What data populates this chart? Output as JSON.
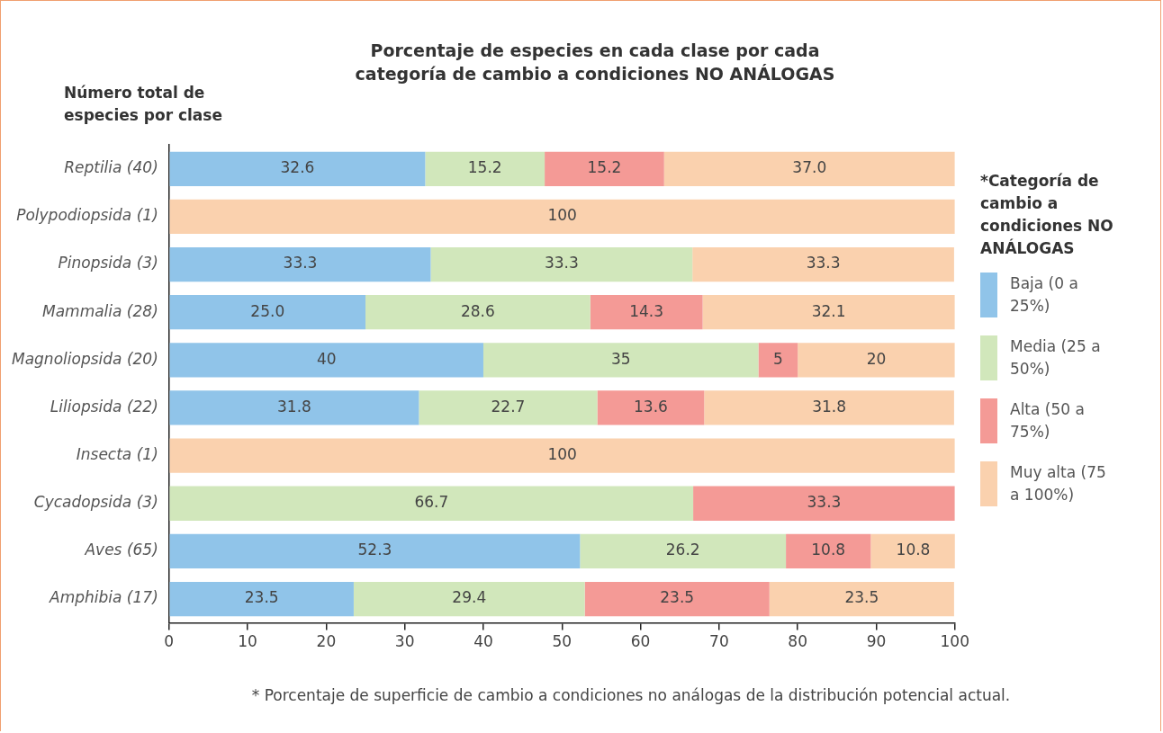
{
  "chart_data": {
    "type": "bar",
    "orientation": "horizontal",
    "stacked": true,
    "title": "Porcentaje de especies en cada clase por cada categoría de cambio a condiciones NO ANÁLOGAS",
    "ylabel": "Número total de especies por clase",
    "legend_title": "*Categoría de cambio a condiciones NO ANÁLOGAS",
    "categories": [
      "Reptilia (40)",
      "Polypodiopsida (1)",
      "Pinopsida (3)",
      "Mammalia (28)",
      "Magnoliopsida (20)",
      "Liliopsida (22)",
      "Insecta (1)",
      "Cycadopsida (3)",
      "Aves (65)",
      "Amphibia (17)"
    ],
    "series": [
      {
        "name": "Baja (0 a 25%)",
        "color": "#90c4e9",
        "values": [
          32.6,
          null,
          33.3,
          25.0,
          40,
          31.8,
          null,
          null,
          52.3,
          23.5
        ],
        "value_labels": [
          "32.6",
          null,
          "33.3",
          "25.0",
          "40",
          "31.8",
          null,
          null,
          "52.3",
          "23.5"
        ]
      },
      {
        "name": "Media (25 a 50%)",
        "color": "#d1e7bb",
        "values": [
          15.2,
          null,
          33.3,
          28.6,
          35,
          22.7,
          null,
          66.7,
          26.2,
          29.4
        ],
        "value_labels": [
          "15.2",
          null,
          "33.3",
          "28.6",
          "35",
          "22.7",
          null,
          "66.7",
          "26.2",
          "29.4"
        ]
      },
      {
        "name": "Alta (50 a 75%)",
        "color": "#f49a96",
        "values": [
          15.2,
          null,
          null,
          14.3,
          5,
          13.6,
          null,
          33.3,
          10.8,
          23.5
        ],
        "value_labels": [
          "15.2",
          null,
          null,
          "14.3",
          "5",
          "13.6",
          null,
          "33.3",
          "10.8",
          "23.5"
        ]
      },
      {
        "name": "Muy alta (75 a 100%)",
        "color": "#fad1ae",
        "values": [
          37.0,
          100,
          33.3,
          32.1,
          20,
          31.8,
          100,
          null,
          10.8,
          23.5
        ],
        "value_labels": [
          "37.0",
          "100",
          "33.3",
          "32.1",
          "20",
          "31.8",
          "100",
          null,
          "10.8",
          "23.5"
        ]
      }
    ],
    "xlim": [
      0,
      100
    ],
    "xticks": [
      0,
      10,
      20,
      30,
      40,
      50,
      60,
      70,
      80,
      90,
      100
    ],
    "grid": false,
    "legend": "right",
    "annotations": [
      "* Porcentaje de superficie de cambio a condiciones no análogas de la distribución potencial actual."
    ]
  }
}
